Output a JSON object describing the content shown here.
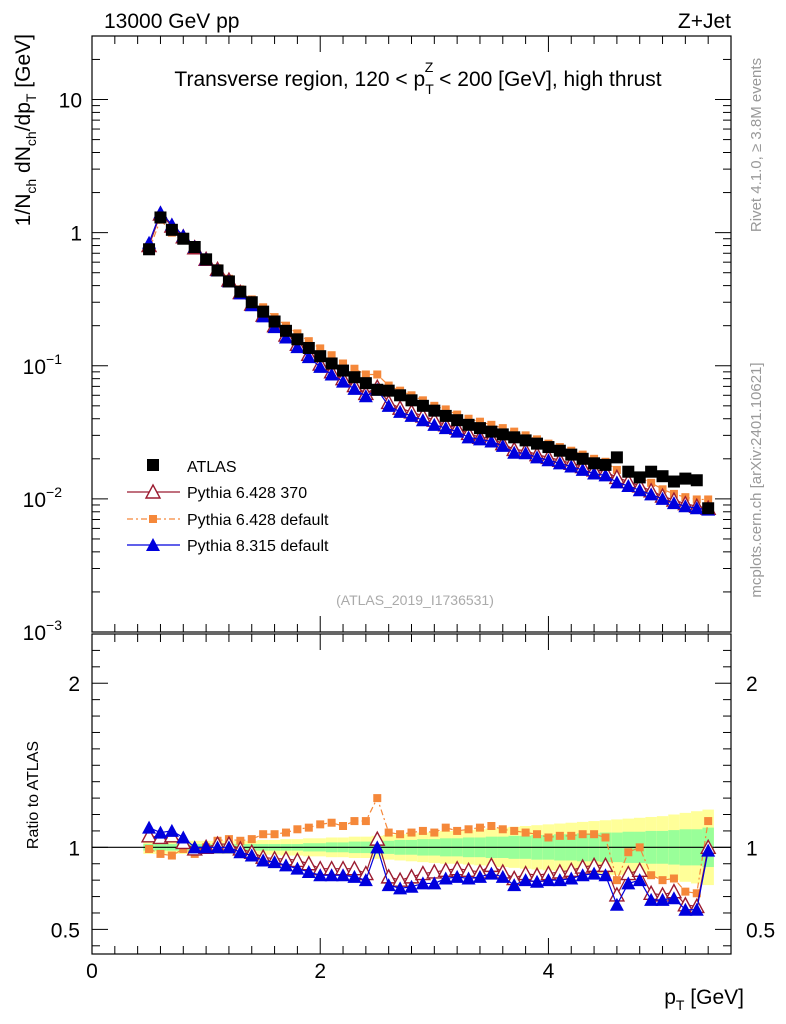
{
  "header": {
    "left": "13000 GeV pp",
    "right": "Z+Jet"
  },
  "side_labels": {
    "rivet": "Rivet 4.1.0, ≥ 3.8M events",
    "mcplots": "mcplots.cern.ch [arXiv:2401.10621]"
  },
  "chart_data": [
    {
      "type": "scatter",
      "panel": "main",
      "title": "Transverse region, 120 < p_T^Z < 200 [GeV], high thrust",
      "title_parts": {
        "pre": "Transverse region, 120 < p",
        "sub": "T",
        "sup": "Z",
        "post": " < 200 [GeV], high thrust"
      },
      "ylabel": "1/N_ch dN_ch/dp_T [GeV]",
      "ylabel_parts": {
        "a": "1/N",
        "a_sub": "ch",
        "b": " dN",
        "b_sub": "ch",
        "c": "/dp",
        "c_sub": "T",
        "d": " [GeV]"
      },
      "yscale": "log",
      "ylim": [
        0.001,
        30
      ],
      "y_ticks": [
        {
          "value": 10,
          "label": "10"
        },
        {
          "value": 1,
          "label": "1"
        },
        {
          "value": 0.1,
          "label": "10",
          "exp": "−1"
        },
        {
          "value": 0.01,
          "label": "10",
          "exp": "−2"
        },
        {
          "value": 0.001,
          "label": "10",
          "exp": "−3"
        }
      ],
      "xlim": [
        0,
        5.6
      ],
      "watermark": "(ATLAS_2019_I1736531)",
      "legend_position": "bottom-left",
      "x": [
        0.5,
        0.6,
        0.7,
        0.8,
        0.9,
        1.0,
        1.1,
        1.2,
        1.3,
        1.4,
        1.5,
        1.6,
        1.7,
        1.8,
        1.9,
        2.0,
        2.1,
        2.2,
        2.3,
        2.4,
        2.5,
        2.6,
        2.7,
        2.8,
        2.9,
        3.0,
        3.1,
        3.2,
        3.3,
        3.4,
        3.5,
        3.6,
        3.7,
        3.8,
        3.9,
        4.0,
        4.1,
        4.2,
        4.3,
        4.4,
        4.5,
        4.6,
        4.7,
        4.8,
        4.9,
        5.0,
        5.1,
        5.2,
        5.3,
        5.4
      ],
      "series": [
        {
          "name": "ATLAS",
          "marker": "filled-square",
          "color": "#000000",
          "values": [
            0.75,
            1.3,
            1.05,
            0.9,
            0.78,
            0.63,
            0.52,
            0.43,
            0.36,
            0.3,
            0.255,
            0.215,
            0.183,
            0.158,
            0.136,
            0.118,
            0.104,
            0.092,
            0.082,
            0.074,
            0.066,
            0.065,
            0.06,
            0.055,
            0.05,
            0.046,
            0.042,
            0.039,
            0.036,
            0.034,
            0.032,
            0.0305,
            0.029,
            0.0275,
            0.026,
            0.0245,
            0.023,
            0.0215,
            0.02,
            0.0185,
            0.018,
            0.0205,
            0.016,
            0.0145,
            0.016,
            0.0148,
            0.0135,
            0.0142,
            0.0138,
            0.0085
          ]
        },
        {
          "name": "Pythia 6.428 370",
          "marker": "open-triangle",
          "color": "#9b1b30",
          "values": [
            0.8,
            1.38,
            1.12,
            0.93,
            0.77,
            0.63,
            0.53,
            0.44,
            0.355,
            0.29,
            0.24,
            0.2,
            0.17,
            0.145,
            0.122,
            0.103,
            0.09,
            0.08,
            0.071,
            0.062,
            0.069,
            0.053,
            0.048,
            0.045,
            0.042,
            0.039,
            0.036,
            0.034,
            0.031,
            0.029,
            0.0285,
            0.026,
            0.0235,
            0.023,
            0.0215,
            0.0205,
            0.0195,
            0.0185,
            0.0175,
            0.0165,
            0.016,
            0.0145,
            0.0135,
            0.0125,
            0.0115,
            0.0105,
            0.0098,
            0.0092,
            0.0088,
            0.0085
          ]
        },
        {
          "name": "Pythia 6.428 default",
          "marker": "filled-square-dashed",
          "color": "#f5883a",
          "values": [
            0.74,
            1.25,
            1.0,
            0.89,
            0.75,
            0.63,
            0.54,
            0.45,
            0.375,
            0.315,
            0.275,
            0.232,
            0.2,
            0.175,
            0.153,
            0.135,
            0.12,
            0.104,
            0.095,
            0.086,
            0.086,
            0.071,
            0.065,
            0.06,
            0.055,
            0.05,
            0.047,
            0.043,
            0.04,
            0.038,
            0.036,
            0.034,
            0.032,
            0.03,
            0.028,
            0.026,
            0.0245,
            0.023,
            0.0215,
            0.02,
            0.019,
            0.0165,
            0.0155,
            0.0145,
            0.0132,
            0.0118,
            0.0109,
            0.0103,
            0.0099,
            0.0099
          ]
        },
        {
          "name": "Pythia 8.315 default",
          "marker": "filled-triangle",
          "color": "#0000dd",
          "values": [
            0.84,
            1.42,
            1.15,
            0.95,
            0.78,
            0.63,
            0.52,
            0.43,
            0.35,
            0.285,
            0.235,
            0.195,
            0.163,
            0.138,
            0.116,
            0.098,
            0.086,
            0.076,
            0.067,
            0.059,
            0.066,
            0.05,
            0.045,
            0.042,
            0.039,
            0.036,
            0.034,
            0.032,
            0.029,
            0.028,
            0.027,
            0.025,
            0.0222,
            0.022,
            0.0205,
            0.0195,
            0.0185,
            0.0175,
            0.0165,
            0.0155,
            0.015,
            0.0133,
            0.0125,
            0.0116,
            0.0108,
            0.01,
            0.0093,
            0.0088,
            0.0085,
            0.0083
          ]
        }
      ]
    },
    {
      "type": "line",
      "panel": "ratio",
      "ylabel": "Ratio to ATLAS",
      "xlabel": "p_T [GeV]",
      "xlabel_parts": {
        "pre": "p",
        "sub": "T",
        "post": " [GeV]"
      },
      "xlim": [
        0,
        5.6
      ],
      "ylim": [
        0.35,
        2.3
      ],
      "x_ticks": [
        0,
        2,
        4
      ],
      "y_ticks": [
        0.5,
        1,
        2
      ],
      "reference_line": 1.0,
      "bands": {
        "inner_color": "#99ff99",
        "outer_color": "#ffff99",
        "inner_halfwidth": [
          0.02,
          0.02,
          0.02,
          0.02,
          0.02,
          0.02,
          0.02,
          0.02,
          0.02,
          0.02,
          0.02,
          0.02,
          0.02,
          0.02,
          0.025,
          0.025,
          0.03,
          0.03,
          0.035,
          0.035,
          0.04,
          0.04,
          0.045,
          0.045,
          0.05,
          0.05,
          0.055,
          0.055,
          0.06,
          0.06,
          0.065,
          0.065,
          0.07,
          0.07,
          0.075,
          0.075,
          0.08,
          0.08,
          0.085,
          0.085,
          0.09,
          0.09,
          0.095,
          0.095,
          0.1,
          0.1,
          0.105,
          0.11,
          0.11,
          0.12
        ],
        "outer_halfwidth": [
          0.04,
          0.04,
          0.04,
          0.04,
          0.04,
          0.04,
          0.04,
          0.04,
          0.04,
          0.04,
          0.045,
          0.045,
          0.05,
          0.05,
          0.055,
          0.055,
          0.06,
          0.06,
          0.065,
          0.065,
          0.07,
          0.075,
          0.08,
          0.085,
          0.09,
          0.095,
          0.1,
          0.1,
          0.105,
          0.11,
          0.115,
          0.12,
          0.125,
          0.13,
          0.135,
          0.14,
          0.145,
          0.15,
          0.155,
          0.16,
          0.165,
          0.17,
          0.175,
          0.18,
          0.185,
          0.19,
          0.2,
          0.21,
          0.22,
          0.23
        ]
      },
      "x": [
        0.5,
        0.6,
        0.7,
        0.8,
        0.9,
        1.0,
        1.1,
        1.2,
        1.3,
        1.4,
        1.5,
        1.6,
        1.7,
        1.8,
        1.9,
        2.0,
        2.1,
        2.2,
        2.3,
        2.4,
        2.5,
        2.6,
        2.7,
        2.8,
        2.9,
        3.0,
        3.1,
        3.2,
        3.3,
        3.4,
        3.5,
        3.6,
        3.7,
        3.8,
        3.9,
        4.0,
        4.1,
        4.2,
        4.3,
        4.4,
        4.5,
        4.6,
        4.7,
        4.8,
        4.9,
        5.0,
        5.1,
        5.2,
        5.3,
        5.4
      ],
      "series": [
        {
          "name": "Pythia 6.428 370",
          "marker": "open-triangle",
          "color": "#9b1b30",
          "dash": false,
          "values": [
            1.07,
            1.06,
            1.07,
            1.03,
            0.99,
            1.0,
            1.02,
            1.02,
            0.99,
            0.97,
            0.94,
            0.93,
            0.93,
            0.92,
            0.9,
            0.87,
            0.87,
            0.87,
            0.87,
            0.84,
            1.05,
            0.82,
            0.8,
            0.82,
            0.84,
            0.85,
            0.86,
            0.87,
            0.86,
            0.85,
            0.89,
            0.85,
            0.81,
            0.84,
            0.83,
            0.84,
            0.85,
            0.86,
            0.88,
            0.89,
            0.89,
            0.71,
            0.84,
            0.86,
            0.72,
            0.71,
            0.73,
            0.65,
            0.64,
            1.0
          ]
        },
        {
          "name": "Pythia 6.428 default",
          "marker": "filled-square-dashed",
          "color": "#f5883a",
          "dash": true,
          "values": [
            0.99,
            0.96,
            0.95,
            0.99,
            0.96,
            1.0,
            1.04,
            1.05,
            1.04,
            1.05,
            1.08,
            1.08,
            1.09,
            1.11,
            1.12,
            1.14,
            1.15,
            1.13,
            1.16,
            1.16,
            1.3,
            1.09,
            1.08,
            1.09,
            1.1,
            1.09,
            1.12,
            1.1,
            1.11,
            1.12,
            1.13,
            1.11,
            1.1,
            1.09,
            1.08,
            1.06,
            1.07,
            1.07,
            1.08,
            1.08,
            1.06,
            0.8,
            0.97,
            1.0,
            0.83,
            0.8,
            0.81,
            0.73,
            0.72,
            1.16
          ]
        },
        {
          "name": "Pythia 8.315 default",
          "marker": "filled-triangle",
          "color": "#0000dd",
          "dash": false,
          "values": [
            1.12,
            1.09,
            1.1,
            1.06,
            1.0,
            1.0,
            1.0,
            1.0,
            0.97,
            0.95,
            0.92,
            0.91,
            0.89,
            0.87,
            0.85,
            0.83,
            0.83,
            0.83,
            0.82,
            0.8,
            1.0,
            0.77,
            0.75,
            0.76,
            0.78,
            0.78,
            0.81,
            0.82,
            0.81,
            0.82,
            0.84,
            0.82,
            0.77,
            0.8,
            0.79,
            0.8,
            0.8,
            0.81,
            0.83,
            0.84,
            0.83,
            0.65,
            0.78,
            0.8,
            0.68,
            0.68,
            0.69,
            0.62,
            0.62,
            0.98
          ]
        }
      ]
    }
  ]
}
